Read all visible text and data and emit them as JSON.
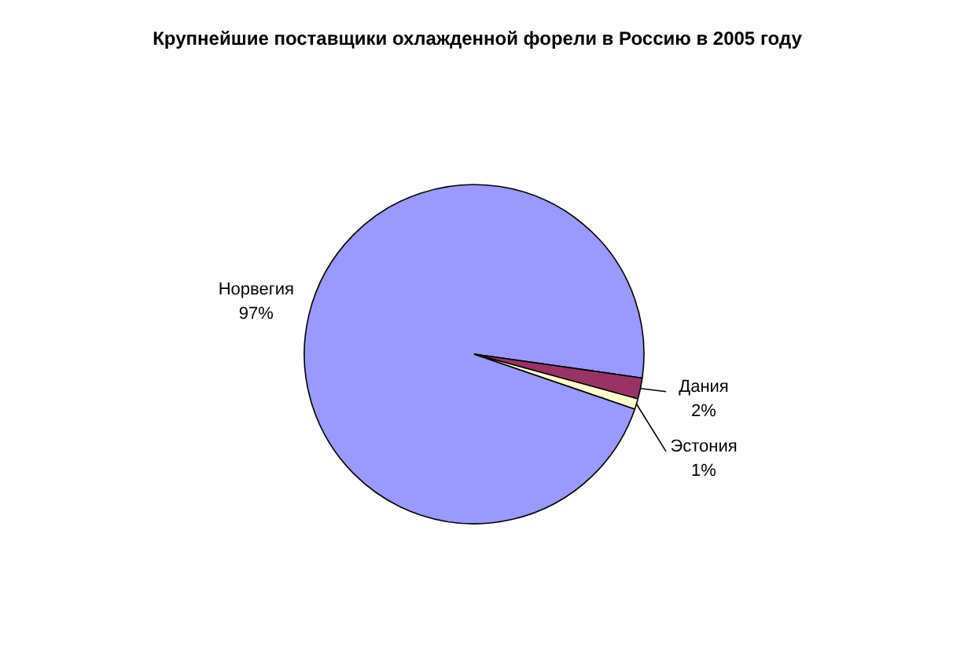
{
  "chart_data": {
    "type": "pie",
    "title": "Крупнейшие поставщики охлажденной форели в Россию в 2005 году",
    "categories": [
      "Норвегия",
      "Дания",
      "Эстония"
    ],
    "values": [
      97,
      2,
      1
    ],
    "colors": [
      "#9999ff",
      "#993366",
      "#ffffcc"
    ],
    "value_labels": [
      "97%",
      "2%",
      "1%"
    ]
  }
}
